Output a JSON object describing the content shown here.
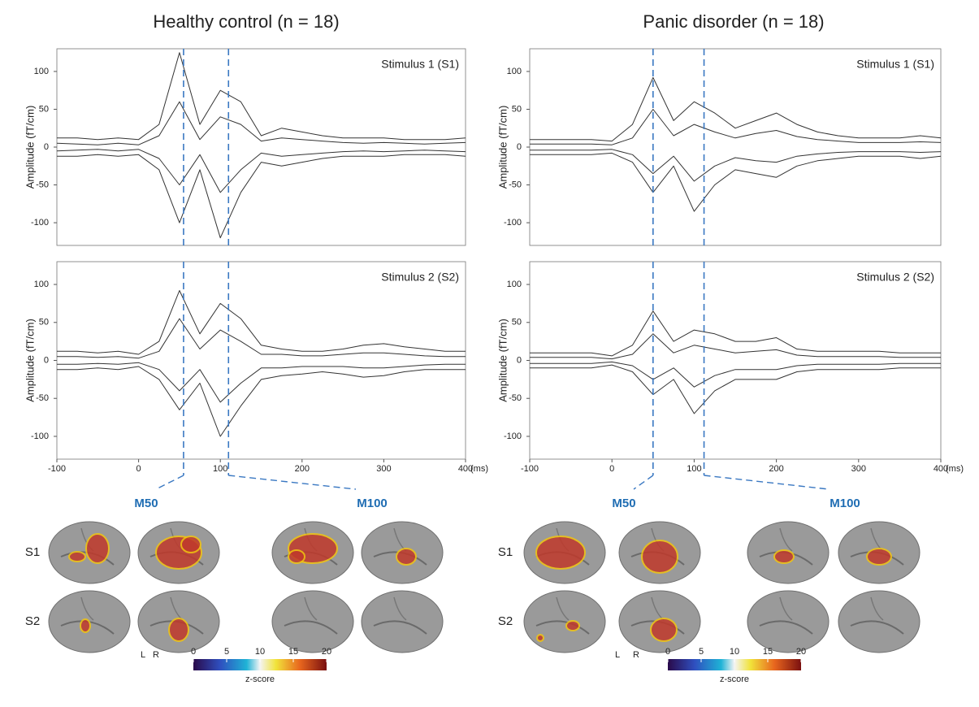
{
  "columns": [
    {
      "title": "Healthy control (n = 18)",
      "components": [
        "M50",
        "M100"
      ],
      "rows": [
        "S1",
        "S2"
      ],
      "hemispheres": [
        "L",
        "R"
      ],
      "colorbar": {
        "lim": [
          0,
          20
        ],
        "ticks": [
          0,
          5,
          10,
          15,
          20
        ],
        "label": "z-score"
      }
    },
    {
      "title": "Panic disorder (n = 18)",
      "components": [
        "M50",
        "M100"
      ],
      "rows": [
        "S1",
        "S2"
      ],
      "hemispheres": [
        "L",
        "R"
      ],
      "colorbar": {
        "lim": [
          0,
          20
        ],
        "ticks": [
          0,
          5,
          10,
          15,
          20
        ],
        "label": "z-score"
      }
    }
  ],
  "chart_data": [
    {
      "type": "line",
      "annotation": "Stimulus 1 (S1)",
      "ylabel": "Amplitude (fT/cm)",
      "x": [
        -100,
        -75,
        -50,
        -25,
        0,
        25,
        50,
        75,
        100,
        125,
        150,
        175,
        200,
        225,
        250,
        275,
        300,
        325,
        350,
        375,
        400
      ],
      "xlim": [
        -100,
        400
      ],
      "ylim": [
        -130,
        130
      ],
      "yticks": [
        -100,
        -50,
        0,
        50,
        100
      ],
      "markers": [
        55,
        110
      ],
      "marker_color": "#3a78c2",
      "series": [
        {
          "color": "#333333",
          "values": [
            12,
            12,
            10,
            12,
            10,
            30,
            125,
            30,
            75,
            60,
            15,
            25,
            20,
            15,
            12,
            12,
            12,
            10,
            10,
            10,
            12
          ]
        },
        {
          "color": "#333333",
          "values": [
            -12,
            -12,
            -10,
            -12,
            -10,
            -30,
            -100,
            -30,
            -120,
            -60,
            -20,
            -25,
            -20,
            -15,
            -12,
            -12,
            -12,
            -10,
            -10,
            -10,
            -12
          ]
        },
        {
          "color": "#333333",
          "values": [
            5,
            4,
            3,
            5,
            3,
            15,
            60,
            10,
            40,
            30,
            8,
            12,
            10,
            8,
            6,
            5,
            6,
            5,
            4,
            5,
            6
          ]
        },
        {
          "color": "#333333",
          "values": [
            -5,
            -4,
            -3,
            -5,
            -3,
            -15,
            -50,
            -10,
            -60,
            -30,
            -8,
            -12,
            -10,
            -8,
            -6,
            -5,
            -6,
            -5,
            -4,
            -5,
            -6
          ]
        }
      ]
    },
    {
      "type": "line",
      "annotation": "Stimulus 2 (S2)",
      "ylabel": "Amplitude (fT/cm)",
      "x": [
        -100,
        -75,
        -50,
        -25,
        0,
        25,
        50,
        75,
        100,
        125,
        150,
        175,
        200,
        225,
        250,
        275,
        300,
        325,
        350,
        375,
        400
      ],
      "xlim": [
        -100,
        400
      ],
      "ylim": [
        -130,
        130
      ],
      "yticks": [
        -100,
        -50,
        0,
        50,
        100
      ],
      "markers": [
        55,
        110
      ],
      "marker_color": "#3a78c2",
      "xticks": [
        -100,
        0,
        100,
        200,
        300,
        400
      ],
      "xunit": "(ms)",
      "series": [
        {
          "color": "#333333",
          "values": [
            12,
            12,
            10,
            12,
            8,
            25,
            92,
            35,
            75,
            55,
            20,
            15,
            12,
            12,
            15,
            20,
            22,
            18,
            15,
            12,
            12
          ]
        },
        {
          "color": "#333333",
          "values": [
            -12,
            -12,
            -10,
            -12,
            -8,
            -25,
            -65,
            -30,
            -100,
            -60,
            -25,
            -20,
            -18,
            -15,
            -18,
            -22,
            -20,
            -15,
            -12,
            -12,
            -12
          ]
        },
        {
          "color": "#333333",
          "values": [
            5,
            5,
            4,
            5,
            3,
            12,
            55,
            15,
            40,
            25,
            8,
            8,
            6,
            6,
            8,
            10,
            10,
            8,
            6,
            5,
            5
          ]
        },
        {
          "color": "#333333",
          "values": [
            -5,
            -5,
            -4,
            -5,
            -3,
            -12,
            -40,
            -12,
            -55,
            -30,
            -10,
            -10,
            -8,
            -8,
            -8,
            -10,
            -10,
            -8,
            -6,
            -5,
            -5
          ]
        }
      ]
    },
    {
      "type": "line",
      "annotation": "Stimulus 1 (S1)",
      "ylabel": "Amplitude (fT/cm)",
      "x": [
        -100,
        -75,
        -50,
        -25,
        0,
        25,
        50,
        75,
        100,
        125,
        150,
        175,
        200,
        225,
        250,
        275,
        300,
        325,
        350,
        375,
        400
      ],
      "xlim": [
        -100,
        400
      ],
      "ylim": [
        -130,
        130
      ],
      "yticks": [
        -100,
        -50,
        0,
        50,
        100
      ],
      "markers": [
        50,
        112
      ],
      "marker_color": "#3a78c2",
      "series": [
        {
          "color": "#333333",
          "values": [
            10,
            10,
            10,
            10,
            8,
            30,
            92,
            35,
            60,
            45,
            25,
            35,
            45,
            30,
            20,
            15,
            12,
            12,
            12,
            15,
            12
          ]
        },
        {
          "color": "#333333",
          "values": [
            -10,
            -10,
            -10,
            -10,
            -8,
            -20,
            -60,
            -25,
            -85,
            -50,
            -30,
            -35,
            -40,
            -25,
            -18,
            -15,
            -12,
            -12,
            -12,
            -15,
            -12
          ]
        },
        {
          "color": "#333333",
          "values": [
            4,
            4,
            4,
            4,
            3,
            12,
            50,
            15,
            30,
            20,
            12,
            18,
            22,
            14,
            10,
            8,
            6,
            6,
            6,
            7,
            6
          ]
        },
        {
          "color": "#333333",
          "values": [
            -4,
            -4,
            -4,
            -4,
            -3,
            -10,
            -35,
            -12,
            -45,
            -25,
            -14,
            -18,
            -20,
            -12,
            -9,
            -7,
            -6,
            -6,
            -6,
            -7,
            -6
          ]
        }
      ]
    },
    {
      "type": "line",
      "annotation": "Stimulus 2 (S2)",
      "ylabel": "Amplitude (fT/cm)",
      "x": [
        -100,
        -75,
        -50,
        -25,
        0,
        25,
        50,
        75,
        100,
        125,
        150,
        175,
        200,
        225,
        250,
        275,
        300,
        325,
        350,
        375,
        400
      ],
      "xlim": [
        -100,
        400
      ],
      "ylim": [
        -130,
        130
      ],
      "yticks": [
        -100,
        -50,
        0,
        50,
        100
      ],
      "markers": [
        50,
        112
      ],
      "marker_color": "#3a78c2",
      "xticks": [
        -100,
        0,
        100,
        200,
        300,
        400
      ],
      "xunit": "(ms)",
      "series": [
        {
          "color": "#333333",
          "values": [
            10,
            10,
            10,
            10,
            6,
            20,
            65,
            25,
            40,
            35,
            25,
            25,
            30,
            15,
            12,
            12,
            12,
            12,
            10,
            10,
            10
          ]
        },
        {
          "color": "#333333",
          "values": [
            -10,
            -10,
            -10,
            -10,
            -6,
            -15,
            -45,
            -25,
            -70,
            -40,
            -25,
            -25,
            -25,
            -15,
            -12,
            -12,
            -12,
            -12,
            -10,
            -10,
            -10
          ]
        },
        {
          "color": "#333333",
          "values": [
            4,
            4,
            4,
            4,
            2,
            8,
            35,
            10,
            20,
            15,
            10,
            12,
            14,
            7,
            5,
            5,
            5,
            5,
            4,
            4,
            4
          ]
        },
        {
          "color": "#333333",
          "values": [
            -4,
            -4,
            -4,
            -4,
            -2,
            -7,
            -25,
            -10,
            -35,
            -20,
            -12,
            -12,
            -12,
            -7,
            -5,
            -5,
            -5,
            -5,
            -4,
            -4,
            -4
          ]
        }
      ]
    }
  ]
}
